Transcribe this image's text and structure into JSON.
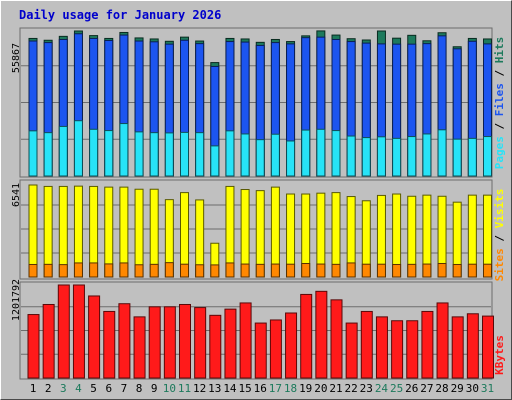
{
  "title": "Daily usage for January 2026",
  "colors": {
    "background": "#c0c0c0",
    "title": "#0000cc",
    "hits": "#1d7a5c",
    "files": "#1c55f0",
    "pages": "#27e3f7",
    "visits": "#ffff00",
    "sites": "#ff8800",
    "kbytes": "#ff1a1a",
    "weekday_label": "#000000",
    "weekend_label": "#1d7a5c"
  },
  "chart_data": [
    {
      "type": "bar",
      "title": "Daily usage for January 2026",
      "ymax_label": "55867",
      "legend": [
        "Pages",
        "/",
        "Files",
        "/",
        "Hits"
      ],
      "categories": [
        "1",
        "2",
        "3",
        "4",
        "5",
        "6",
        "7",
        "8",
        "9",
        "10",
        "11",
        "12",
        "13",
        "14",
        "15",
        "16",
        "17",
        "18",
        "19",
        "20",
        "21",
        "22",
        "23",
        "24",
        "25",
        "26",
        "27",
        "28",
        "29",
        "30",
        "31"
      ],
      "ymax": 55867,
      "series": [
        {
          "name": "Hits",
          "values": [
            53000,
            52300,
            53800,
            55867,
            54100,
            53000,
            55300,
            53200,
            52800,
            51900,
            53500,
            52000,
            43700,
            53000,
            52800,
            51500,
            52600,
            51800,
            54000,
            55900,
            54300,
            52900,
            52400,
            55867,
            53100,
            54200,
            52100,
            55200,
            49800,
            53000,
            52800
          ]
        },
        {
          "name": "Files",
          "values": [
            52000,
            51400,
            52600,
            54800,
            53000,
            52200,
            54300,
            52000,
            51700,
            50800,
            52300,
            51000,
            42200,
            51800,
            51600,
            50300,
            51400,
            50900,
            53300,
            53500,
            52600,
            51800,
            51200,
            50900,
            50800,
            50800,
            51000,
            54000,
            49000,
            51900,
            50900
          ]
        },
        {
          "name": "Pages",
          "values": [
            17400,
            16700,
            19100,
            21300,
            18000,
            17500,
            20200,
            17000,
            16700,
            16600,
            16800,
            16700,
            11600,
            17400,
            16200,
            14000,
            16100,
            13500,
            17700,
            18000,
            17500,
            15400,
            14800,
            15100,
            14500,
            15200,
            16200,
            17800,
            14200,
            14500,
            15200
          ]
        }
      ]
    },
    {
      "type": "bar",
      "ymax_label": "6541",
      "legend": [
        "Sites",
        "/",
        "Visits"
      ],
      "categories": [
        "1",
        "2",
        "3",
        "4",
        "5",
        "6",
        "7",
        "8",
        "9",
        "10",
        "11",
        "12",
        "13",
        "14",
        "15",
        "16",
        "17",
        "18",
        "19",
        "20",
        "21",
        "22",
        "23",
        "24",
        "25",
        "26",
        "27",
        "28",
        "29",
        "30",
        "31"
      ],
      "ymax": 6541,
      "series": [
        {
          "name": "Visits",
          "values": [
            6541,
            6440,
            6440,
            6460,
            6440,
            6390,
            6390,
            6240,
            6240,
            5500,
            6000,
            5480,
            2400,
            6440,
            6220,
            6140,
            6390,
            5900,
            5900,
            5960,
            6000,
            5720,
            5420,
            5800,
            5900,
            5740,
            5820,
            5740,
            5320,
            5820,
            5820
          ]
        },
        {
          "name": "Sites",
          "values": [
            890,
            900,
            880,
            1000,
            1000,
            930,
            1000,
            870,
            900,
            1020,
            910,
            870,
            860,
            1000,
            920,
            900,
            920,
            910,
            960,
            920,
            900,
            1000,
            910,
            910,
            890,
            900,
            920,
            960,
            890,
            910,
            910
          ]
        }
      ]
    },
    {
      "type": "bar",
      "ymax_label": "1201792",
      "legend": [
        "KBytes"
      ],
      "categories": [
        "1",
        "2",
        "3",
        "4",
        "5",
        "6",
        "7",
        "8",
        "9",
        "10",
        "11",
        "12",
        "13",
        "14",
        "15",
        "16",
        "17",
        "18",
        "19",
        "20",
        "21",
        "22",
        "23",
        "24",
        "25",
        "26",
        "27",
        "28",
        "29",
        "30",
        "31"
      ],
      "ymax": 1201792,
      "series": [
        {
          "name": "KBytes",
          "values": [
            820000,
            950000,
            1201792,
            1201792,
            1060000,
            860000,
            960000,
            790000,
            920000,
            920000,
            950000,
            910000,
            810000,
            890000,
            970000,
            710000,
            750000,
            840000,
            1080000,
            1120000,
            1010000,
            710000,
            860000,
            790000,
            740000,
            740000,
            860000,
            970000,
            790000,
            830000,
            800000
          ]
        }
      ]
    }
  ],
  "weekend_days": [
    "3",
    "4",
    "10",
    "11",
    "17",
    "18",
    "24",
    "25",
    "31"
  ]
}
